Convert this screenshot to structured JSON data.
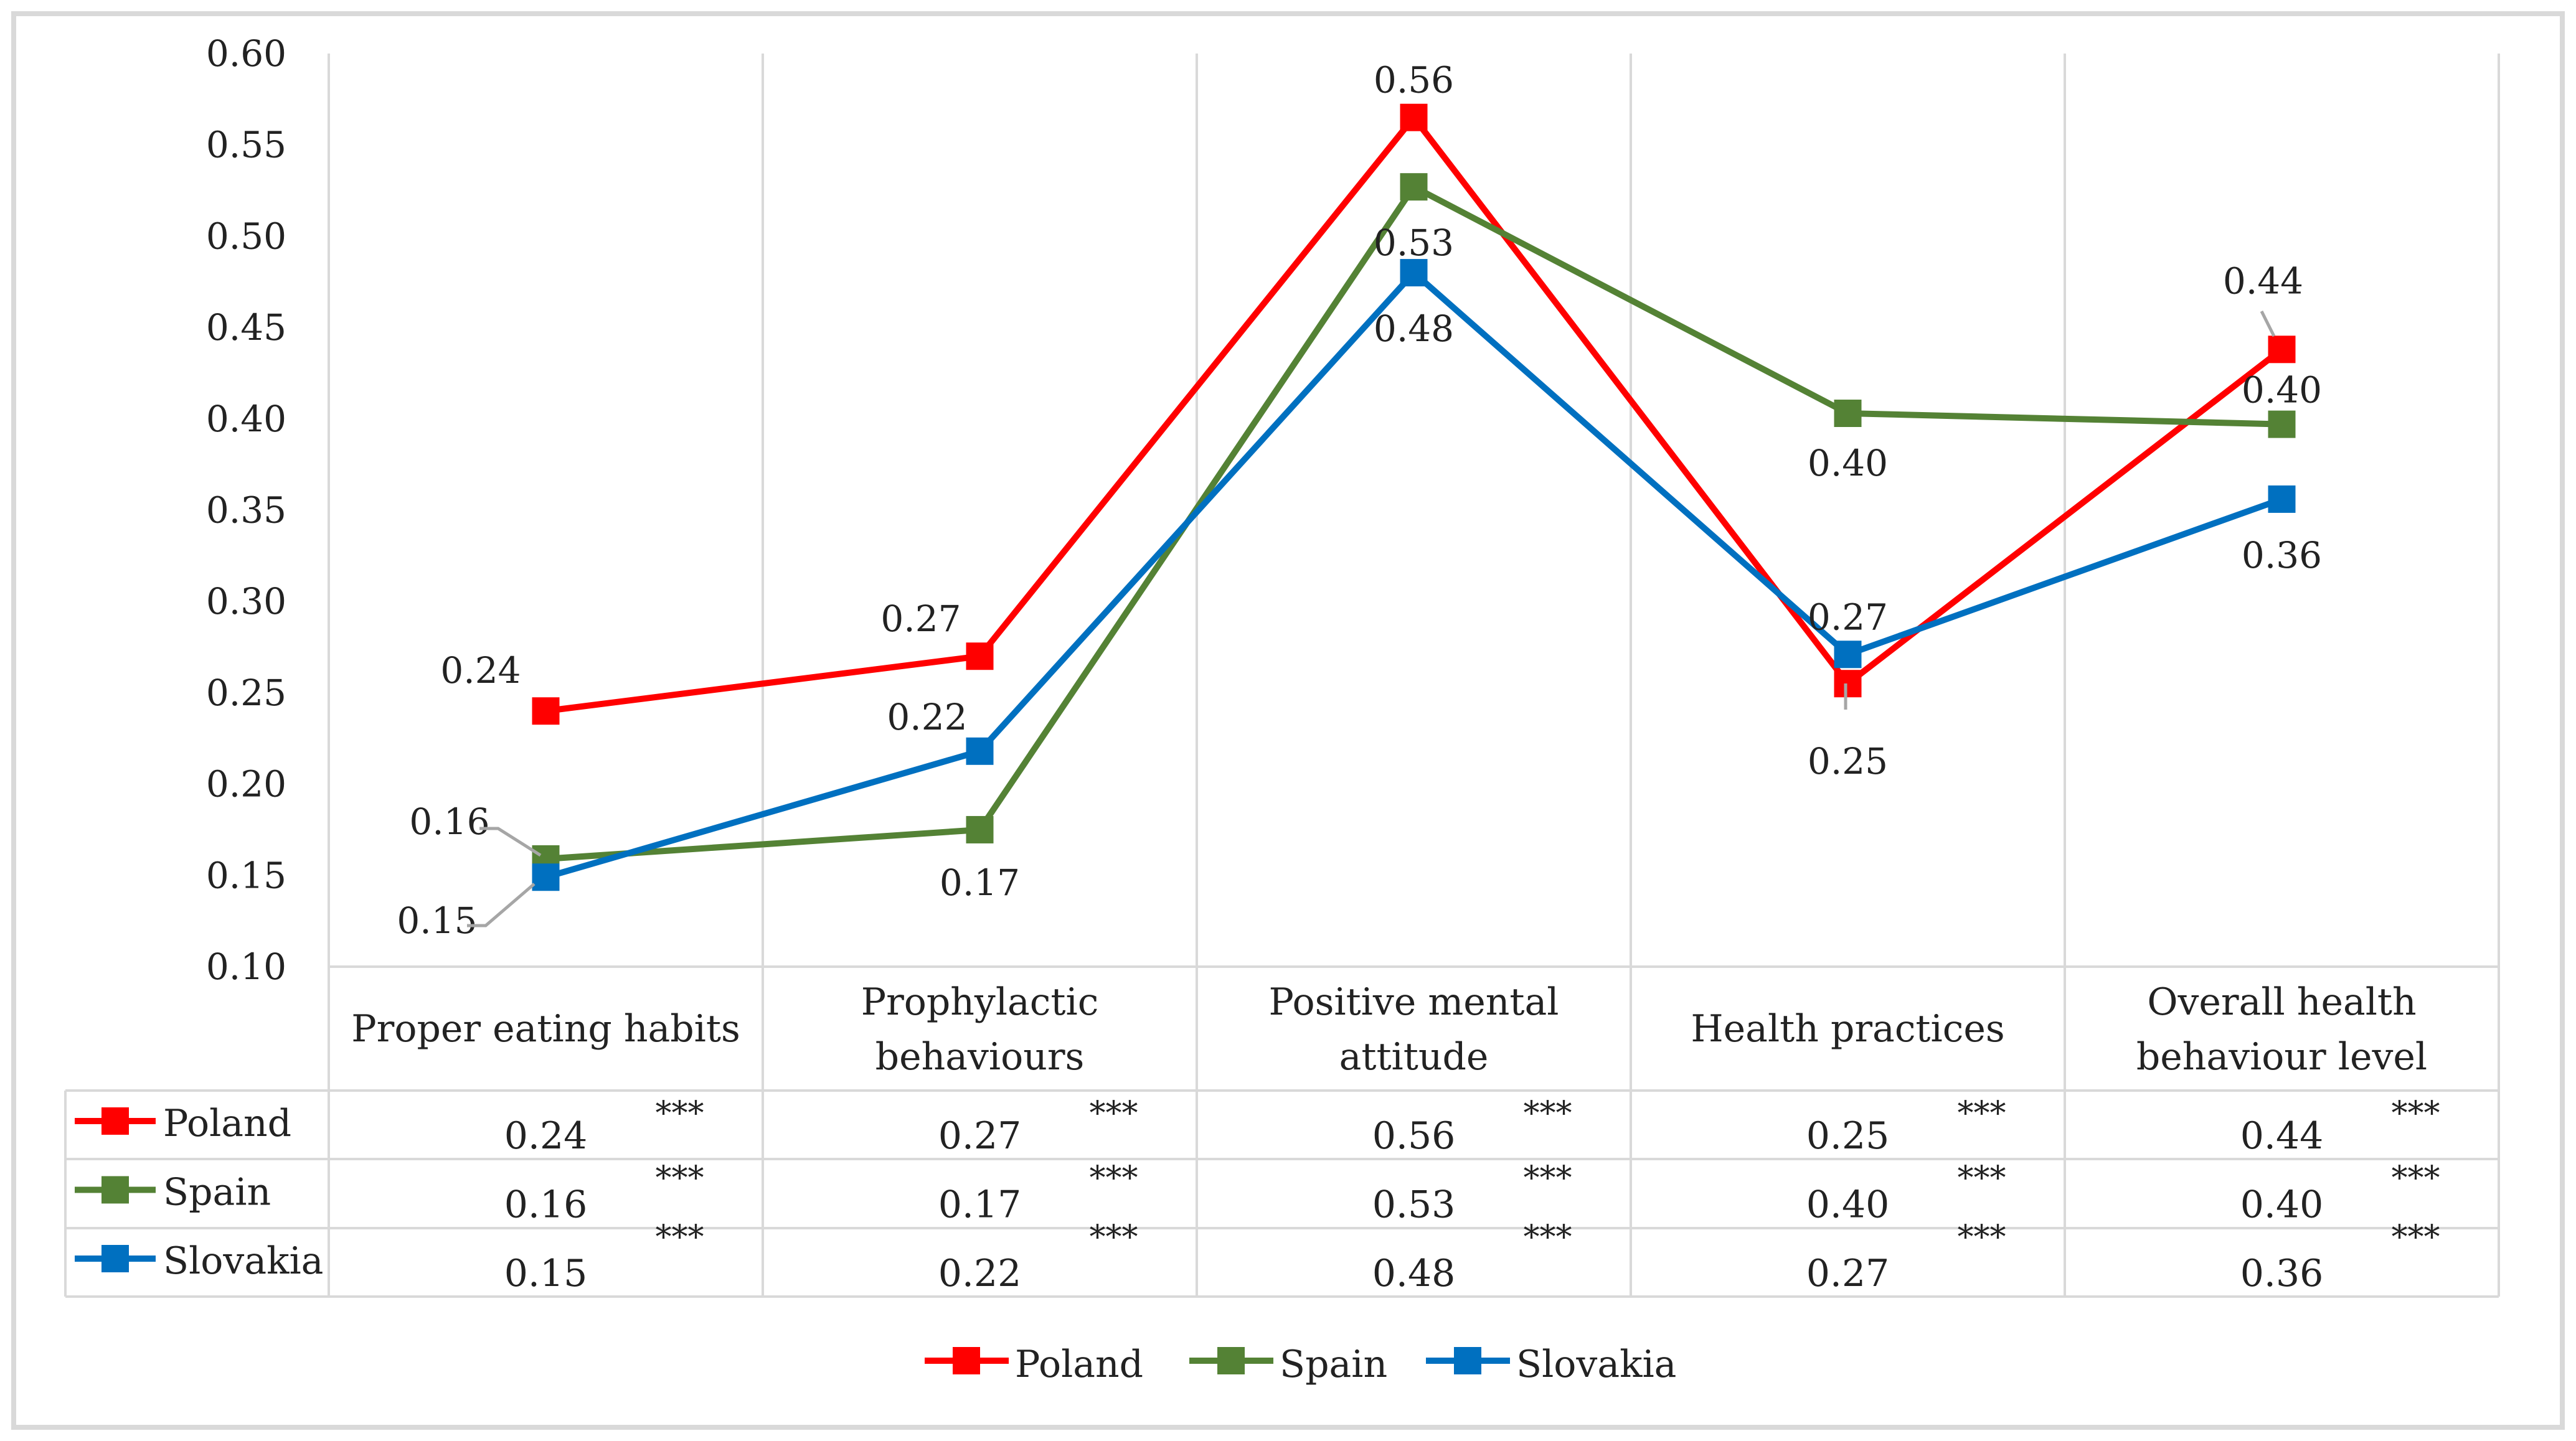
{
  "chart_data": {
    "type": "line",
    "title": "",
    "xlabel": "",
    "ylabel": "",
    "ylim": [
      0.1,
      0.6
    ],
    "yticks": [
      "0.60",
      "0.55",
      "0.50",
      "0.45",
      "0.40",
      "0.35",
      "0.30",
      "0.25",
      "0.20",
      "0.15",
      "0.10"
    ],
    "grid": "vertical",
    "categories": [
      [
        "Proper eating habits"
      ],
      [
        "Prophylactic",
        "behaviours"
      ],
      [
        "Positive mental",
        "attitude"
      ],
      [
        "Health practices"
      ],
      [
        "Overall health",
        "behaviour level"
      ]
    ],
    "series": [
      {
        "name": "Poland",
        "color": "#ff0000",
        "values": [
          0.24,
          0.27,
          0.565,
          0.255,
          0.438
        ],
        "labels": [
          "0.24",
          "0.27",
          "0.56",
          "0.25",
          "0.44"
        ],
        "significance": [
          "***",
          "***",
          "***",
          "***",
          "***"
        ]
      },
      {
        "name": "Spain",
        "color": "#548235",
        "values": [
          0.159,
          0.175,
          0.527,
          0.403,
          0.397
        ],
        "labels": [
          "0.16",
          "0.17",
          "0.53",
          "0.40",
          "0.40"
        ],
        "significance": [
          "***",
          "***",
          "***",
          "***",
          "***"
        ]
      },
      {
        "name": "Slovakia",
        "color": "#0070c0",
        "values": [
          0.149,
          0.218,
          0.48,
          0.271,
          0.356
        ],
        "labels": [
          "0.15",
          "0.22",
          "0.48",
          "0.27",
          "0.36"
        ],
        "significance": [
          "***",
          "***",
          "***",
          "***",
          "***"
        ]
      }
    ],
    "legend": "bottom",
    "data_table": true
  }
}
